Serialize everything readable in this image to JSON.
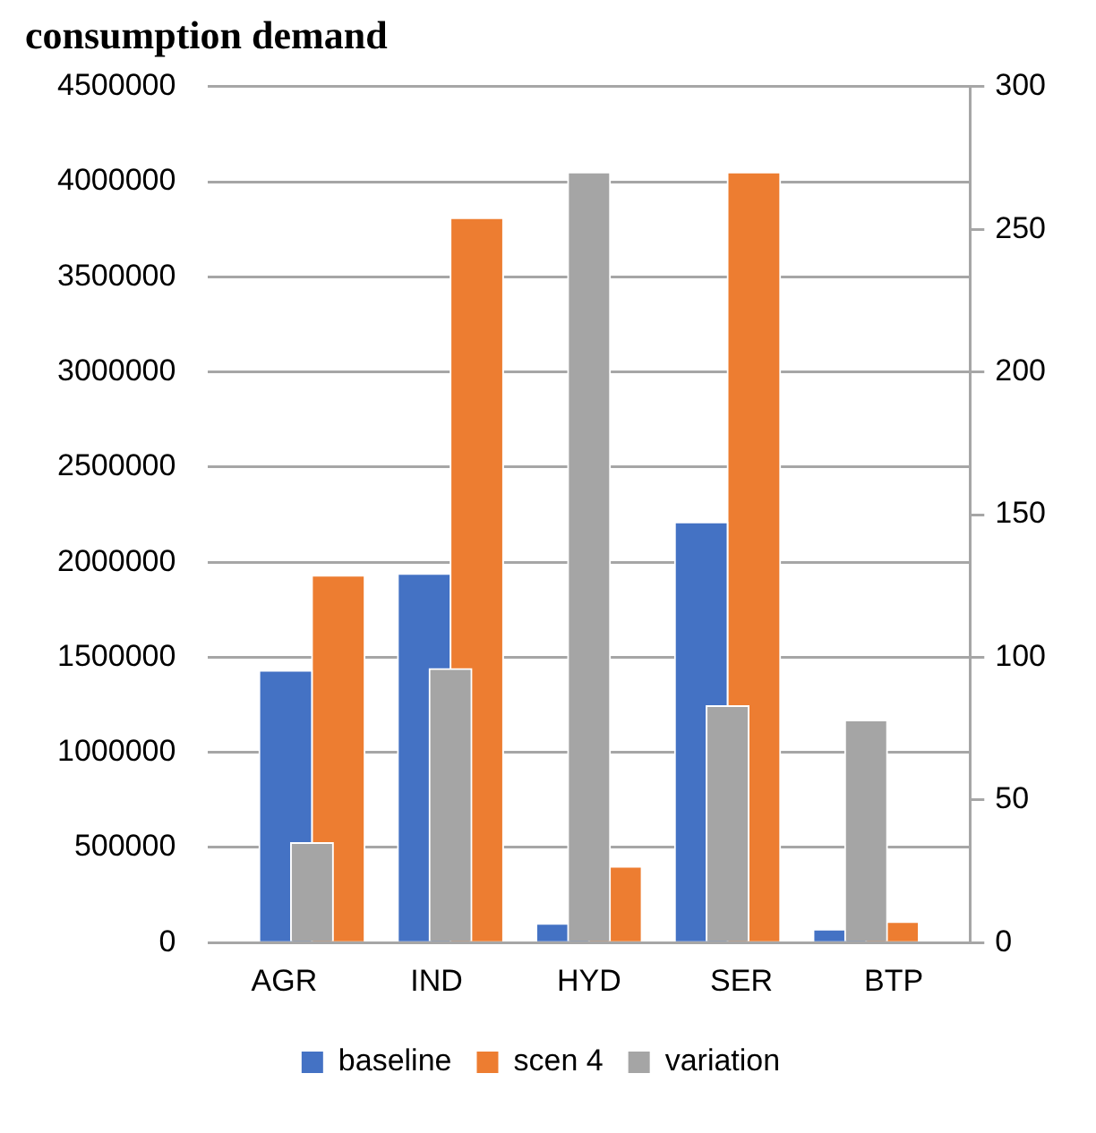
{
  "chart_data": {
    "type": "bar",
    "title": "consumption demand",
    "categories": [
      "AGR",
      "IND",
      "HYD",
      "SER",
      "BTP"
    ],
    "series": [
      {
        "name": "baseline",
        "color": "#4472c4",
        "values": [
          1430000,
          1940000,
          100000,
          2210000,
          70000
        ]
      },
      {
        "name": "scen 4",
        "color": "#ed7d31",
        "values": [
          1930000,
          3810000,
          400000,
          4050000,
          110000
        ]
      },
      {
        "name": "variation",
        "color": "#a5a5a5",
        "axis": "y2",
        "values": [
          35,
          96,
          270,
          83,
          78
        ]
      }
    ],
    "ylim": [
      0,
      4500000
    ],
    "yticks": [
      0,
      500000,
      1000000,
      1500000,
      2000000,
      2500000,
      3000000,
      3500000,
      4000000,
      4500000
    ],
    "y2lim": [
      0,
      300
    ],
    "y2ticks": [
      0,
      50,
      100,
      150,
      200,
      250,
      300
    ],
    "grid": "y",
    "legend": "bottom"
  }
}
